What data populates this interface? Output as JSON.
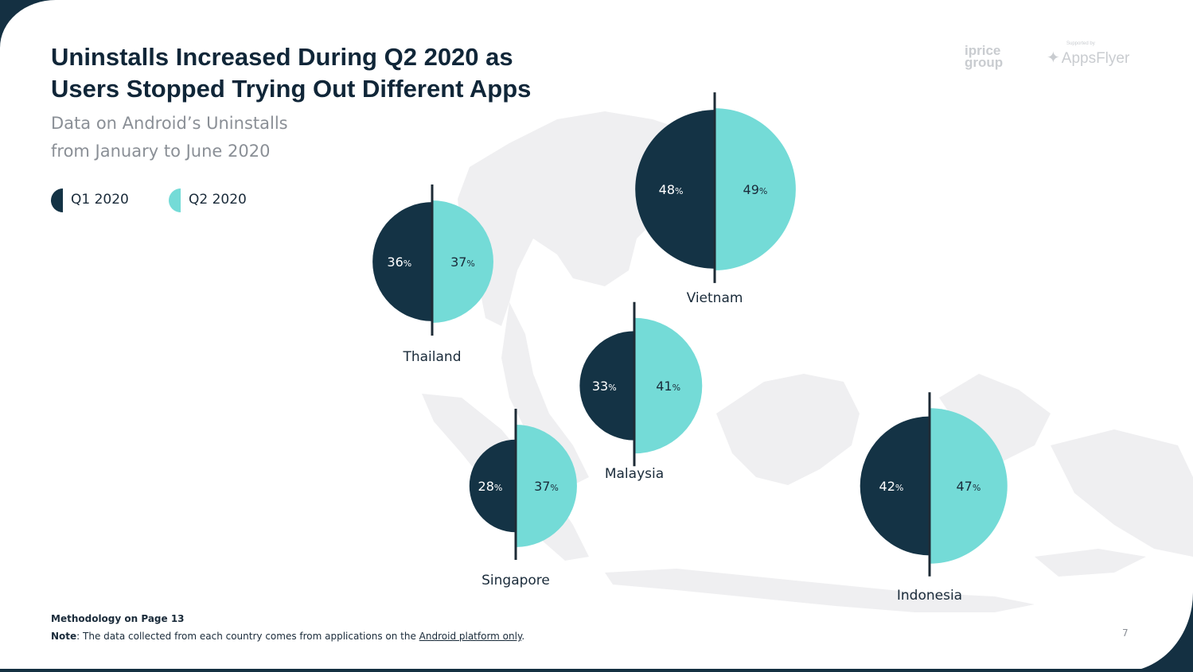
{
  "title_line1": "Uninstalls Increased During Q2 2020 as",
  "title_line2": "Users Stopped Trying Out Different Apps",
  "subtitle_line1": "Data on Android’s Uninstalls",
  "subtitle_line2": "from January to June 2020",
  "legend": [
    {
      "label": "Q1 2020",
      "color": "#143345"
    },
    {
      "label": "Q2 2020",
      "color": "#74dbd7"
    }
  ],
  "logos": {
    "iprice": "iprice group",
    "supported_by": "Supported by",
    "appsflyer": "AppsFlyer"
  },
  "colors": {
    "q1": "#143345",
    "q2": "#74dbd7",
    "divider": "#1e2b36",
    "map": "#efeff1"
  },
  "chart_data": {
    "type": "pie",
    "unit": "%",
    "series_names": [
      "Q1 2020",
      "Q2 2020"
    ],
    "countries": [
      {
        "name": "Vietnam",
        "q1": 48,
        "q2": 49
      },
      {
        "name": "Thailand",
        "q1": 36,
        "q2": 37
      },
      {
        "name": "Malaysia",
        "q1": 33,
        "q2": 41
      },
      {
        "name": "Singapore",
        "q1": 28,
        "q2": 37
      },
      {
        "name": "Indonesia",
        "q1": 42,
        "q2": 47
      }
    ]
  },
  "footer": {
    "methodology": "Methodology on Page 13",
    "note_label": "Note",
    "note_text": ": The data collected from each country comes from applications on the ",
    "note_link": "Android platform only",
    "note_end": "."
  },
  "page_number": "7"
}
